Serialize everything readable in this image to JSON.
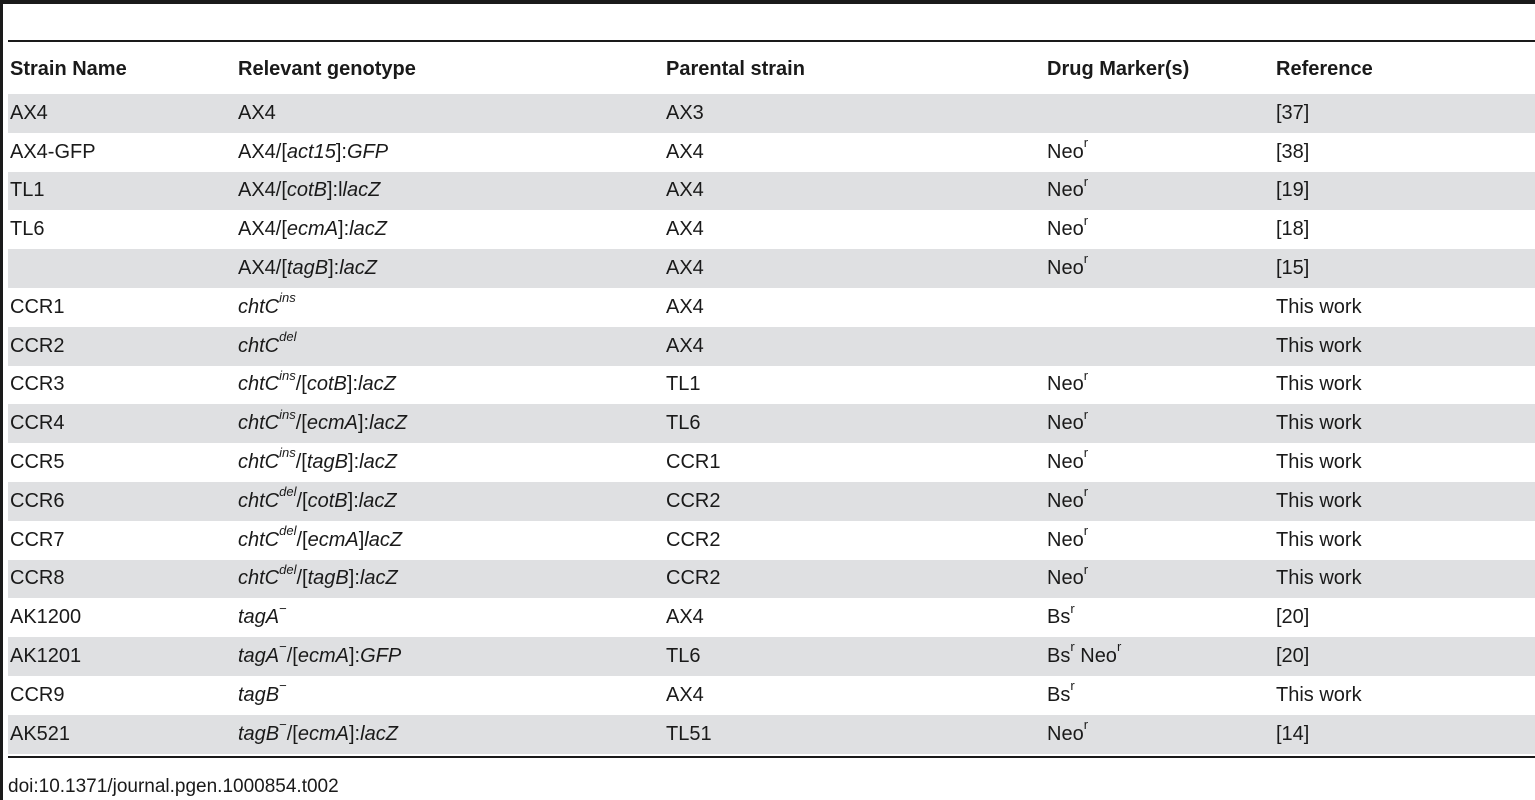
{
  "table": {
    "headers": [
      "Strain Name",
      "Relevant genotype",
      "Parental strain",
      "Drug Marker(s)",
      "Reference"
    ],
    "rows": [
      {
        "strain": "AX4",
        "genotype": [
          {
            "t": "AX4"
          }
        ],
        "parental": "AX3",
        "markers": [],
        "reference": "[37]"
      },
      {
        "strain": "AX4-GFP",
        "genotype": [
          {
            "t": "AX4/["
          },
          {
            "t": "act15",
            "i": true
          },
          {
            "t": "]:"
          },
          {
            "t": "GFP",
            "i": true
          }
        ],
        "parental": "AX4",
        "markers": [
          {
            "t": "Neo"
          },
          {
            "t": "r",
            "sup": true
          }
        ],
        "reference": "[38]"
      },
      {
        "strain": "TL1",
        "genotype": [
          {
            "t": "AX4/["
          },
          {
            "t": "cotB",
            "i": true
          },
          {
            "t": "]:l"
          },
          {
            "t": "lacZ",
            "i": true
          }
        ],
        "parental": "AX4",
        "markers": [
          {
            "t": "Neo"
          },
          {
            "t": "r",
            "sup": true
          }
        ],
        "reference": "[19]"
      },
      {
        "strain": "TL6",
        "genotype": [
          {
            "t": "AX4/["
          },
          {
            "t": "ecmA",
            "i": true
          },
          {
            "t": "]:"
          },
          {
            "t": "lacZ",
            "i": true
          }
        ],
        "parental": "AX4",
        "markers": [
          {
            "t": "Neo"
          },
          {
            "t": "r",
            "sup": true
          }
        ],
        "reference": "[18]"
      },
      {
        "strain": "",
        "genotype": [
          {
            "t": "AX4/["
          },
          {
            "t": "tagB",
            "i": true
          },
          {
            "t": "]:"
          },
          {
            "t": "lacZ",
            "i": true
          }
        ],
        "parental": "AX4",
        "markers": [
          {
            "t": "Neo"
          },
          {
            "t": "r",
            "sup": true
          }
        ],
        "reference": "[15]"
      },
      {
        "strain": "CCR1",
        "genotype": [
          {
            "t": "chtC",
            "i": true
          },
          {
            "t": "ins",
            "i": true,
            "sup": true
          }
        ],
        "parental": "AX4",
        "markers": [],
        "reference": "This work"
      },
      {
        "strain": "CCR2",
        "genotype": [
          {
            "t": "chtC",
            "i": true
          },
          {
            "t": "del",
            "i": true,
            "sup": true
          }
        ],
        "parental": "AX4",
        "markers": [],
        "reference": "This work"
      },
      {
        "strain": "CCR3",
        "genotype": [
          {
            "t": "chtC",
            "i": true
          },
          {
            "t": "ins",
            "i": true,
            "sup": true
          },
          {
            "t": "/["
          },
          {
            "t": "cotB",
            "i": true
          },
          {
            "t": "]:"
          },
          {
            "t": "lacZ",
            "i": true
          }
        ],
        "parental": "TL1",
        "markers": [
          {
            "t": "Neo"
          },
          {
            "t": "r",
            "sup": true
          }
        ],
        "reference": "This work"
      },
      {
        "strain": "CCR4",
        "genotype": [
          {
            "t": "chtC",
            "i": true
          },
          {
            "t": "ins",
            "i": true,
            "sup": true
          },
          {
            "t": "/["
          },
          {
            "t": "ecmA",
            "i": true
          },
          {
            "t": "]:"
          },
          {
            "t": "lacZ",
            "i": true
          }
        ],
        "parental": "TL6",
        "markers": [
          {
            "t": "Neo"
          },
          {
            "t": "r",
            "sup": true
          }
        ],
        "reference": "This work"
      },
      {
        "strain": "CCR5",
        "genotype": [
          {
            "t": "chtC",
            "i": true
          },
          {
            "t": "ins",
            "i": true,
            "sup": true
          },
          {
            "t": "/["
          },
          {
            "t": "tagB",
            "i": true
          },
          {
            "t": "]:"
          },
          {
            "t": "lacZ",
            "i": true
          }
        ],
        "parental": "CCR1",
        "markers": [
          {
            "t": "Neo"
          },
          {
            "t": "r",
            "sup": true
          }
        ],
        "reference": "This work"
      },
      {
        "strain": "CCR6",
        "genotype": [
          {
            "t": "chtC",
            "i": true
          },
          {
            "t": "del",
            "i": true,
            "sup": true
          },
          {
            "t": "/["
          },
          {
            "t": "cotB",
            "i": true
          },
          {
            "t": "]:"
          },
          {
            "t": "lacZ",
            "i": true
          }
        ],
        "parental": "CCR2",
        "markers": [
          {
            "t": "Neo"
          },
          {
            "t": "r",
            "sup": true
          }
        ],
        "reference": "This work"
      },
      {
        "strain": "CCR7",
        "genotype": [
          {
            "t": "chtC",
            "i": true
          },
          {
            "t": "del",
            "i": true,
            "sup": true
          },
          {
            "t": "/["
          },
          {
            "t": "ecmA",
            "i": true
          },
          {
            "t": "]"
          },
          {
            "t": "lacZ",
            "i": true
          }
        ],
        "parental": "CCR2",
        "markers": [
          {
            "t": "Neo"
          },
          {
            "t": "r",
            "sup": true
          }
        ],
        "reference": "This work"
      },
      {
        "strain": "CCR8",
        "genotype": [
          {
            "t": "chtC",
            "i": true
          },
          {
            "t": "del",
            "i": true,
            "sup": true
          },
          {
            "t": "/["
          },
          {
            "t": "tagB",
            "i": true
          },
          {
            "t": "]:"
          },
          {
            "t": "lacZ",
            "i": true
          }
        ],
        "parental": "CCR2",
        "markers": [
          {
            "t": "Neo"
          },
          {
            "t": "r",
            "sup": true
          }
        ],
        "reference": "This work"
      },
      {
        "strain": "AK1200",
        "genotype": [
          {
            "t": "tagA",
            "i": true
          },
          {
            "t": "−",
            "sup": true
          }
        ],
        "parental": "AX4",
        "markers": [
          {
            "t": "Bs"
          },
          {
            "t": "r",
            "sup": true
          }
        ],
        "reference": "[20]"
      },
      {
        "strain": "AK1201",
        "genotype": [
          {
            "t": "tagA",
            "i": true
          },
          {
            "t": "−",
            "sup": true
          },
          {
            "t": "/["
          },
          {
            "t": "ecmA",
            "i": true
          },
          {
            "t": "]:"
          },
          {
            "t": "GFP",
            "i": true
          }
        ],
        "parental": "TL6",
        "markers": [
          {
            "t": "Bs"
          },
          {
            "t": "r",
            "sup": true
          },
          {
            "t": " Neo"
          },
          {
            "t": "r",
            "sup": true
          }
        ],
        "reference": "[20]"
      },
      {
        "strain": "CCR9",
        "genotype": [
          {
            "t": "tagB",
            "i": true
          },
          {
            "t": "−",
            "sup": true
          }
        ],
        "parental": "AX4",
        "markers": [
          {
            "t": "Bs"
          },
          {
            "t": "r",
            "sup": true
          }
        ],
        "reference": "This work"
      },
      {
        "strain": "AK521",
        "genotype": [
          {
            "t": "tagB",
            "i": true
          },
          {
            "t": "−",
            "sup": true
          },
          {
            "t": "/["
          },
          {
            "t": "ecmA",
            "i": true
          },
          {
            "t": "]:"
          },
          {
            "t": "lacZ",
            "i": true
          }
        ],
        "parental": "TL51",
        "markers": [
          {
            "t": "Neo"
          },
          {
            "t": "r",
            "sup": true
          }
        ],
        "reference": "[14]"
      }
    ]
  },
  "footer": {
    "doi": "doi:10.1371/journal.pgen.1000854.t002"
  }
}
